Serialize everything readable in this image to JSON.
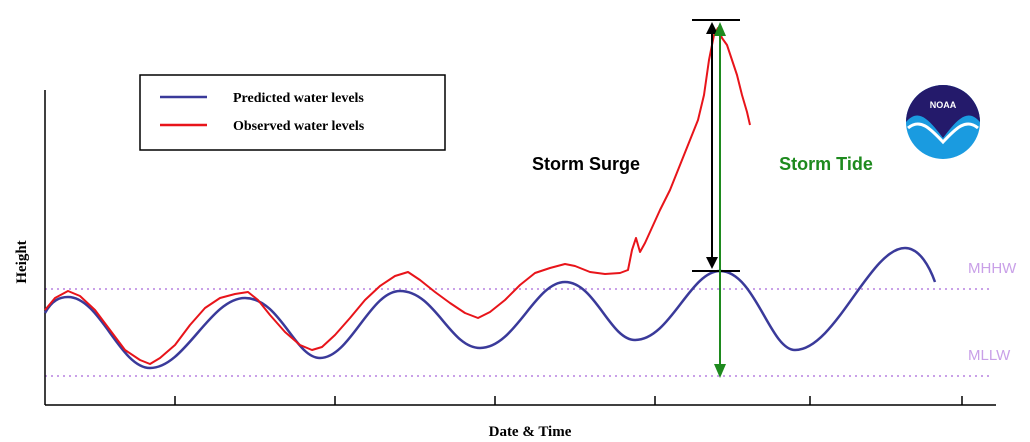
{
  "legend": {
    "items": [
      "Predicted water levels",
      "Observed water levels"
    ]
  },
  "annotations": {
    "surge": "Storm Surge",
    "tide": "Storm Tide"
  },
  "datums": {
    "high": "MHHW",
    "low": "MLLW"
  },
  "axes": {
    "y": "Height",
    "x": "Date & Time"
  },
  "logo": "NOAA"
}
